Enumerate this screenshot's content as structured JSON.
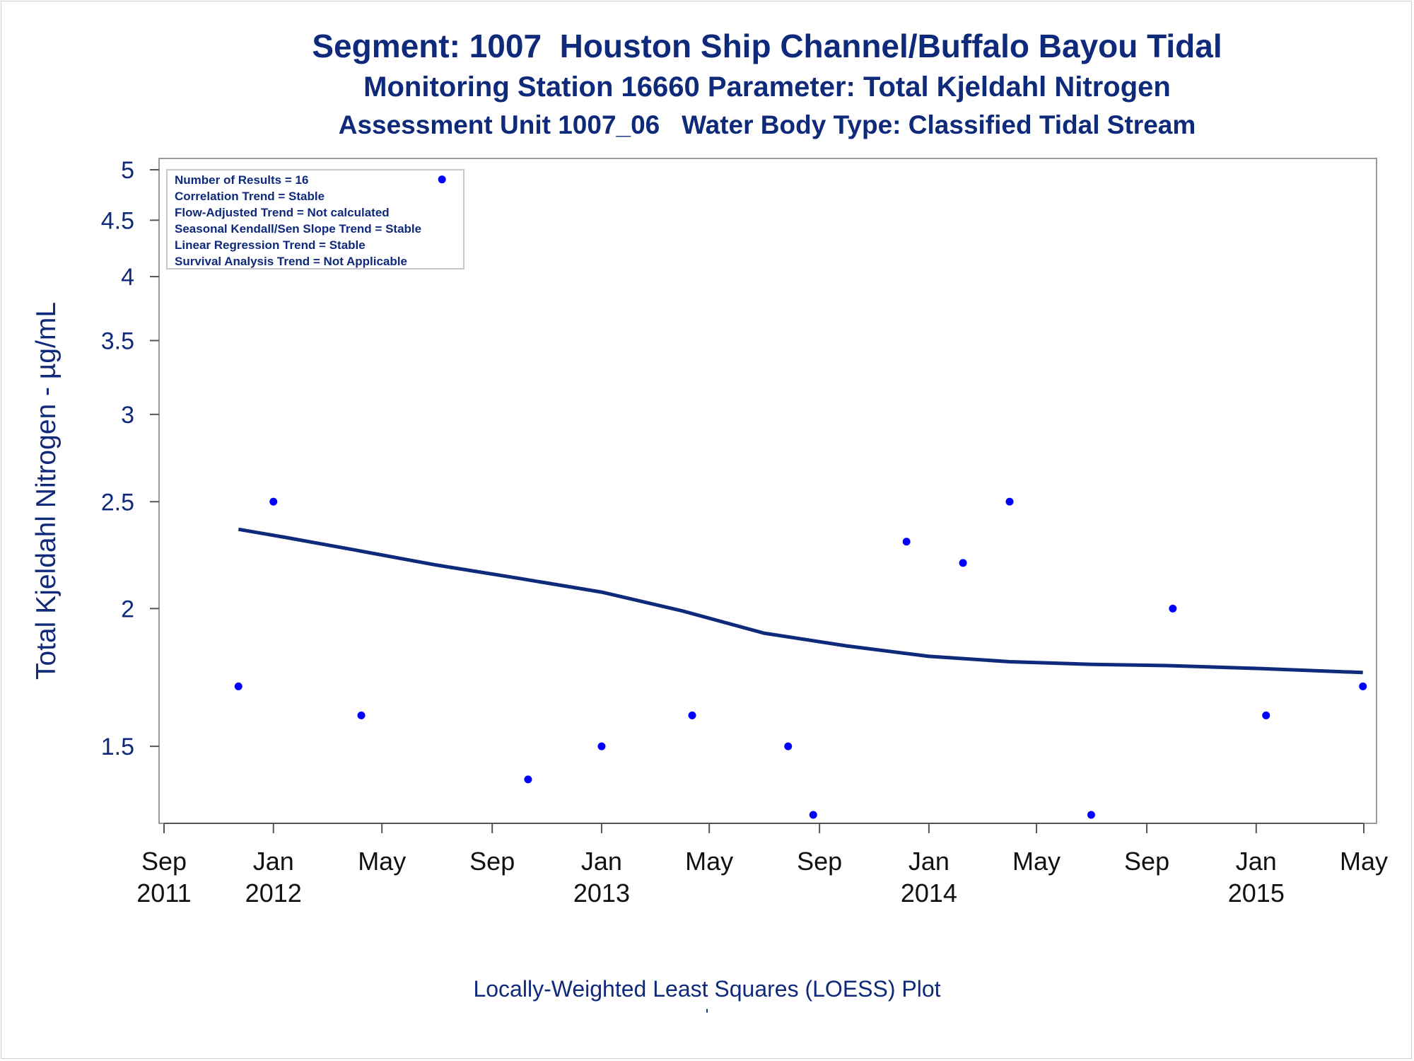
{
  "titles": {
    "line1": "Segment: 1007  Houston Ship Channel/Buffalo Bayou Tidal",
    "line2": "Monitoring Station 16660 Parameter: Total Kjeldahl Nitrogen",
    "line3": "Assessment Unit 1007_06   Water Body Type: Classified Tidal Stream"
  },
  "footnote": "Locally-Weighted Least Squares (LOESS) Plot",
  "footnote_mark": "'",
  "colors": {
    "title": "#0f2a7a",
    "points": "#0000ff",
    "loess": "#0f2a7a",
    "frame": "#9a9a9a"
  },
  "legend": [
    "Number of Results = 16",
    "Correlation Trend = Stable",
    "Flow-Adjusted Trend = Not calculated",
    "Seasonal Kendall/Sen Slope Trend = Stable",
    "Linear Regression Trend = Stable",
    "Survival Analysis Trend = Not Applicable"
  ],
  "chart_data": {
    "type": "scatter",
    "title": "Segment: 1007  Houston Ship Channel/Buffalo Bayou Tidal",
    "ylabel": "Total Kjeldahl Nitrogen -  µg/mL",
    "xlabel": "",
    "y_scale": "log",
    "ylim": [
      1.3,
      5.0
    ],
    "xlim": [
      "2011-09-01",
      "2015-05-01"
    ],
    "y_ticks": [
      "1.5",
      "2",
      "2.5",
      "3",
      "3.5",
      "4",
      "4.5",
      "5"
    ],
    "y_tick_values": [
      1.5,
      2,
      2.5,
      3,
      3.5,
      4,
      4.5,
      5
    ],
    "x_ticks": [
      {
        "date": "2011-09-01",
        "line1": "Sep",
        "line2": "2011"
      },
      {
        "date": "2012-01-01",
        "line1": "Jan",
        "line2": "2012"
      },
      {
        "date": "2012-05-01",
        "line1": "May",
        "line2": ""
      },
      {
        "date": "2012-09-01",
        "line1": "Sep",
        "line2": ""
      },
      {
        "date": "2013-01-01",
        "line1": "Jan",
        "line2": "2013"
      },
      {
        "date": "2013-05-01",
        "line1": "May",
        "line2": ""
      },
      {
        "date": "2013-09-01",
        "line1": "Sep",
        "line2": ""
      },
      {
        "date": "2014-01-01",
        "line1": "Jan",
        "line2": "2014"
      },
      {
        "date": "2014-05-01",
        "line1": "May",
        "line2": ""
      },
      {
        "date": "2014-09-01",
        "line1": "Sep",
        "line2": ""
      },
      {
        "date": "2015-01-01",
        "line1": "Jan",
        "line2": "2015"
      },
      {
        "date": "2015-05-01",
        "line1": "May",
        "line2": ""
      }
    ],
    "series": [
      {
        "kind": "points",
        "points": [
          {
            "x": "2011-11-23",
            "y": 1.7
          },
          {
            "x": "2012-01-01",
            "y": 2.5
          },
          {
            "x": "2012-04-08",
            "y": 1.6
          },
          {
            "x": "2012-07-07",
            "y": 4.9
          },
          {
            "x": "2012-10-11",
            "y": 1.4
          },
          {
            "x": "2013-01-01",
            "y": 1.5
          },
          {
            "x": "2013-04-12",
            "y": 1.6
          },
          {
            "x": "2013-07-28",
            "y": 1.5
          },
          {
            "x": "2013-08-25",
            "y": 1.3
          },
          {
            "x": "2013-12-07",
            "y": 2.3
          },
          {
            "x": "2014-02-08",
            "y": 2.2
          },
          {
            "x": "2014-04-01",
            "y": 2.5
          },
          {
            "x": "2014-07-01",
            "y": 1.3
          },
          {
            "x": "2014-09-30",
            "y": 2.0
          },
          {
            "x": "2015-01-12",
            "y": 1.6
          },
          {
            "x": "2015-04-30",
            "y": 1.7
          }
        ]
      },
      {
        "kind": "loess",
        "points": [
          {
            "x": "2011-11-23",
            "y": 2.36
          },
          {
            "x": "2012-01-15",
            "y": 2.32
          },
          {
            "x": "2012-04-01",
            "y": 2.26
          },
          {
            "x": "2012-07-01",
            "y": 2.19
          },
          {
            "x": "2012-10-01",
            "y": 2.13
          },
          {
            "x": "2013-01-01",
            "y": 2.07
          },
          {
            "x": "2013-04-01",
            "y": 1.99
          },
          {
            "x": "2013-07-01",
            "y": 1.9
          },
          {
            "x": "2013-10-01",
            "y": 1.85
          },
          {
            "x": "2014-01-01",
            "y": 1.81
          },
          {
            "x": "2014-04-01",
            "y": 1.79
          },
          {
            "x": "2014-07-01",
            "y": 1.78
          },
          {
            "x": "2014-10-01",
            "y": 1.775
          },
          {
            "x": "2015-01-01",
            "y": 1.765
          },
          {
            "x": "2015-04-30",
            "y": 1.75
          }
        ]
      }
    ]
  }
}
